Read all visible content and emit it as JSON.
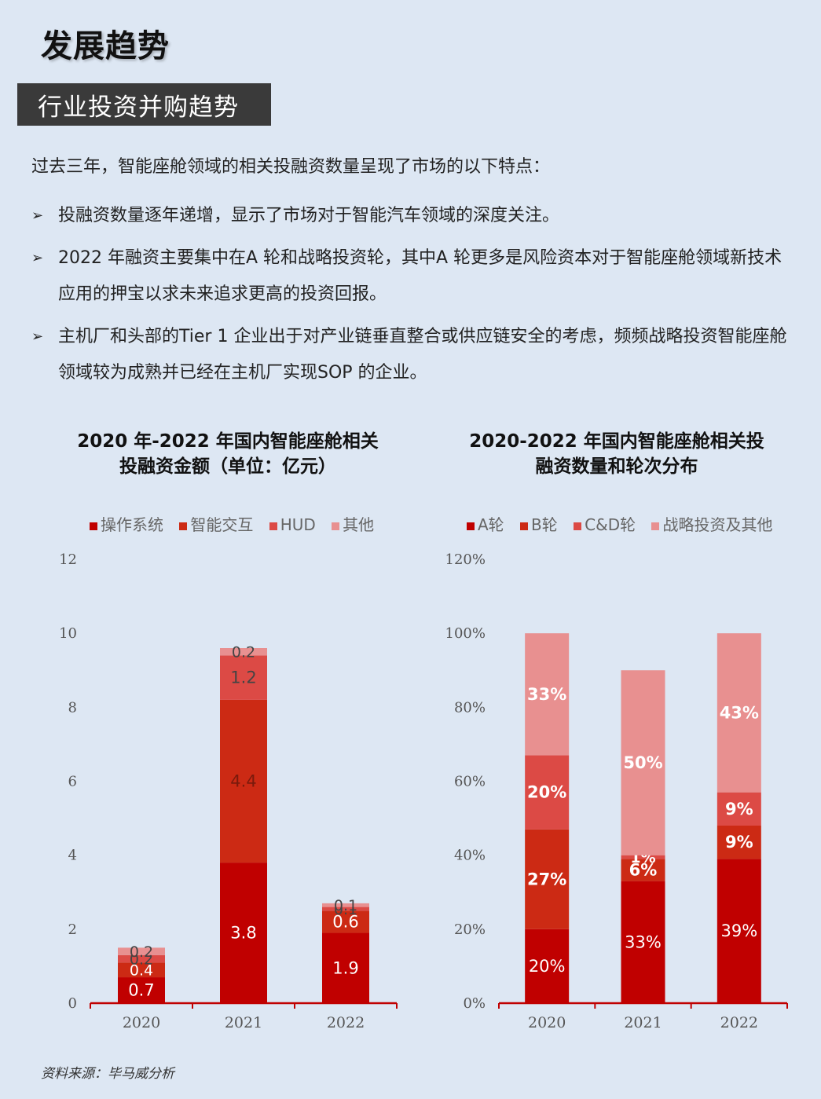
{
  "header": {
    "title": "发展趋势",
    "section": "行业投资并购趋势"
  },
  "body": {
    "intro": "过去三年，智能座舱领域的相关投融资数量呈现了市场的以下特点：",
    "bullets": [
      "投融资数量逐年递增，显示了市场对于智能汽车领域的深度关注。",
      "2022 年融资主要集中在A 轮和战略投资轮，其中A 轮更多是风险资本对于智能座舱领域新技术应用的押宝以求未来追求更高的投资回报。",
      "主机厂和头部的Tier 1 企业出于对产业链垂直整合或供应链安全的考虑，频频战略投资智能座舱领域较为成熟并已经在主机厂实现SOP 的企业。"
    ]
  },
  "chart_data": [
    {
      "type": "bar",
      "stacked": true,
      "title": "2020 年-2022 年国内智能座舱相关投融资金额（单位：亿元）",
      "title_lines": [
        "2020 年-2022 年国内智能座舱相关",
        "投融资金额（单位：亿元）"
      ],
      "categories": [
        "2020",
        "2021",
        "2022"
      ],
      "series": [
        {
          "name": "操作系统",
          "color": "#c00000",
          "values": [
            0.7,
            3.8,
            1.9
          ],
          "labels": [
            "0.7",
            "3.8",
            "1.9"
          ]
        },
        {
          "name": "智能交互",
          "color": "#cc2a14",
          "values": [
            0.4,
            4.4,
            0.6
          ],
          "labels": [
            "0.4",
            "4.4",
            "0.6"
          ]
        },
        {
          "name": "HUD",
          "color": "#dc4a45",
          "values": [
            0.2,
            1.2,
            0.1
          ],
          "labels": [
            "0.2",
            "1.2",
            "0.1"
          ]
        },
        {
          "name": "其他",
          "color": "#e89090",
          "values": [
            0.2,
            0.2,
            0.1
          ],
          "labels": [
            "0.2",
            "0.2",
            "0.1"
          ]
        }
      ],
      "yticks": [
        "0",
        "2",
        "4",
        "6",
        "8",
        "10",
        "12"
      ],
      "ylim": [
        0,
        12
      ],
      "legend_position": "top"
    },
    {
      "type": "bar",
      "stacked": true,
      "title": "2020-2022 年国内智能座舱相关投融资数量和轮次分布",
      "title_lines": [
        "2020-2022 年国内智能座舱相关投",
        "融资数量和轮次分布"
      ],
      "categories": [
        "2020",
        "2021",
        "2022"
      ],
      "series": [
        {
          "name": "A轮",
          "color": "#c00000",
          "values": [
            20,
            33,
            39
          ],
          "labels": [
            "20%",
            "33%",
            "39%"
          ]
        },
        {
          "name": "B轮",
          "color": "#cc2a14",
          "values": [
            27,
            6,
            9
          ],
          "labels": [
            "27%",
            "6%",
            "9%"
          ]
        },
        {
          "name": "C&D轮",
          "color": "#dc4a45",
          "values": [
            20,
            1,
            9
          ],
          "labels": [
            "20%",
            "1%",
            "9%"
          ]
        },
        {
          "name": "战略投资及其他",
          "color": "#e89090",
          "values": [
            33,
            50,
            43
          ],
          "labels": [
            "33%",
            "50%",
            "43%"
          ]
        }
      ],
      "yticks": [
        "0%",
        "20%",
        "40%",
        "60%",
        "80%",
        "100%",
        "120%"
      ],
      "ylim": [
        0,
        120
      ],
      "legend_position": "top"
    }
  ],
  "footer": {
    "source": "资料来源：毕马威分析"
  }
}
